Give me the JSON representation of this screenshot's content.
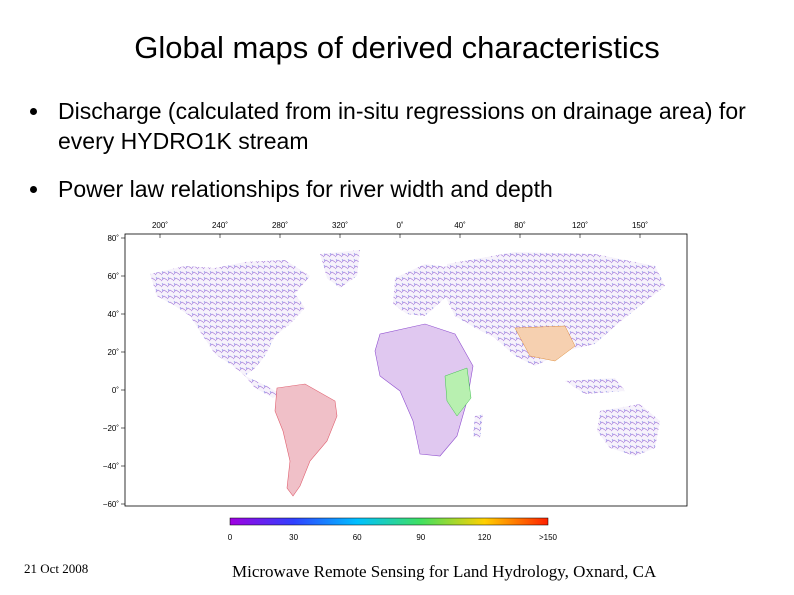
{
  "title": "Global maps of derived characteristics",
  "bullets": [
    {
      "text": "Discharge (calculated from in-situ regressions on drainage area) for every HYDRO1K stream"
    },
    {
      "text": "Power law relationships for river width and depth"
    }
  ],
  "map": {
    "longitude_labels": [
      "200˚",
      "240˚",
      "280˚",
      "320˚",
      "0˚",
      "40˚",
      "80˚",
      "120˚",
      "150˚"
    ],
    "latitude_labels": [
      "80˚",
      "60˚",
      "40˚",
      "20˚",
      "0˚",
      "−20˚",
      "−40˚",
      "−60˚"
    ],
    "colorbar_labels": [
      "0",
      "30",
      "60",
      "90",
      "120",
      ">150"
    ],
    "colorbar_colors": [
      "#a000e0",
      "#3040ff",
      "#00c0ff",
      "#40e060",
      "#ffd000",
      "#ff2000"
    ]
  },
  "footer": {
    "date": "21 Oct 2008",
    "event": "Microwave Remote Sensing for Land Hydrology, Oxnard, CA"
  }
}
